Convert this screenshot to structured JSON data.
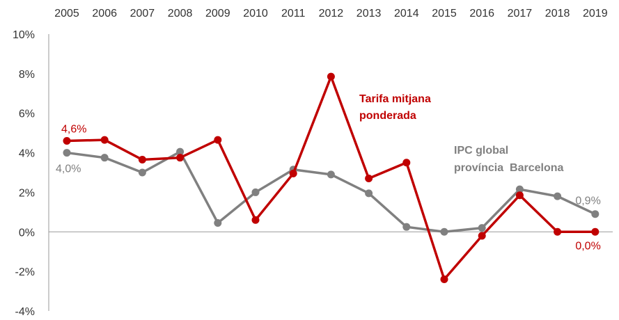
{
  "chart_data": {
    "type": "line",
    "x": [
      "2005",
      "2006",
      "2007",
      "2008",
      "2009",
      "2010",
      "2011",
      "2012",
      "2013",
      "2014",
      "2015",
      "2016",
      "2017",
      "2018",
      "2019"
    ],
    "ylim": [
      -4,
      10
    ],
    "yticks": [
      -4,
      -2,
      0,
      2,
      4,
      6,
      8,
      10
    ],
    "ytick_labels": [
      "-4%",
      "-2%",
      "0%",
      "2%",
      "4%",
      "6%",
      "8%",
      "10%"
    ],
    "xaxis_position": "top",
    "grid": false,
    "series": [
      {
        "name": "Tarifa mitjana ponderada",
        "label_lines": [
          "Tarifa mitjana",
          "ponderada"
        ],
        "color": "#C00000",
        "values": [
          4.6,
          4.65,
          3.65,
          3.75,
          4.65,
          0.6,
          2.95,
          7.85,
          2.7,
          3.5,
          -2.4,
          -0.2,
          1.85,
          0.0,
          0.0
        ],
        "data_labels": [
          {
            "index": 0,
            "text": "4,6%"
          },
          {
            "index": 14,
            "text": "0,0%"
          }
        ]
      },
      {
        "name": "IPC global província Barcelona",
        "label_lines": [
          "IPC global",
          "província  Barcelona"
        ],
        "color": "#808080",
        "values": [
          4.0,
          3.75,
          3.0,
          4.05,
          0.45,
          2.0,
          3.15,
          2.9,
          1.95,
          0.25,
          0.0,
          0.2,
          2.15,
          1.8,
          0.9
        ],
        "data_labels": [
          {
            "index": 0,
            "text": "4,0%"
          },
          {
            "index": 14,
            "text": "0,9%"
          }
        ]
      }
    ]
  }
}
